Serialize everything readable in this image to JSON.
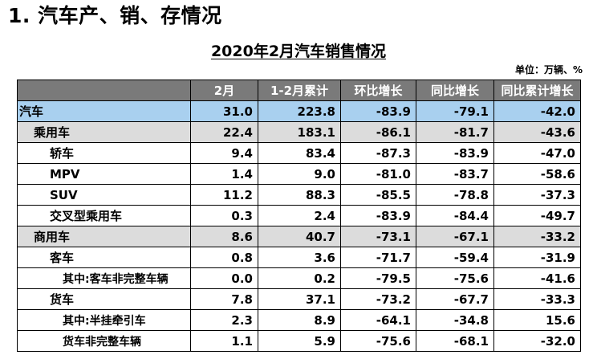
{
  "section_title": "1. 汽车产、销、存情况",
  "table_title": "2020年2月汽车销售情况",
  "unit": "单位：万辆、%",
  "headers": [
    "",
    "2月",
    "1-2月累计",
    "环比增长",
    "同比增长",
    "同比累计增长"
  ],
  "rows": [
    {
      "name": "汽车",
      "level": 0,
      "values": [
        "31.0",
        "223.8",
        "-83.9",
        "-79.1",
        "-42.0"
      ]
    },
    {
      "name": "乘用车",
      "level": 1,
      "values": [
        "22.4",
        "183.1",
        "-86.1",
        "-81.7",
        "-43.6"
      ]
    },
    {
      "name": "轿车",
      "level": 2,
      "values": [
        "9.4",
        "83.4",
        "-87.3",
        "-83.9",
        "-47.0"
      ]
    },
    {
      "name": "MPV",
      "level": 2,
      "values": [
        "1.4",
        "9.0",
        "-81.0",
        "-83.7",
        "-58.6"
      ]
    },
    {
      "name": "SUV",
      "level": 2,
      "values": [
        "11.2",
        "88.3",
        "-85.5",
        "-78.8",
        "-37.3"
      ]
    },
    {
      "name": "交叉型乘用车",
      "level": 2,
      "values": [
        "0.3",
        "2.4",
        "-83.9",
        "-84.4",
        "-49.7"
      ]
    },
    {
      "name": "商用车",
      "level": 1,
      "values": [
        "8.6",
        "40.7",
        "-73.1",
        "-67.1",
        "-33.2"
      ]
    },
    {
      "name": "客车",
      "level": 2,
      "values": [
        "0.8",
        "3.6",
        "-71.7",
        "-59.4",
        "-31.9"
      ]
    },
    {
      "name": "其中:客车非完整车辆",
      "level": 3,
      "values": [
        "0.0",
        "0.2",
        "-79.5",
        "-75.6",
        "-41.6"
      ]
    },
    {
      "name": "货车",
      "level": 2,
      "values": [
        "7.8",
        "37.1",
        "-73.2",
        "-67.7",
        "-33.3"
      ]
    },
    {
      "name": "其中:半挂牵引车",
      "level": 3,
      "values": [
        "2.3",
        "8.9",
        "-64.1",
        "-34.8",
        "15.6"
      ]
    },
    {
      "name": "货车非完整车辆",
      "level": 3,
      "values": [
        "1.1",
        "5.9",
        "-75.6",
        "-68.1",
        "-32.0"
      ]
    }
  ]
}
